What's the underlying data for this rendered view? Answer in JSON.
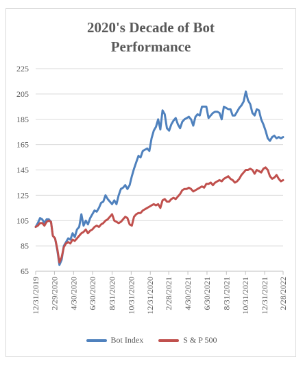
{
  "chart_data": {
    "type": "line",
    "title": "2020's Decade of Bot\nPerformance",
    "xlabel": "",
    "ylabel": "",
    "ylim": [
      65,
      225
    ],
    "yticks": [
      65,
      85,
      105,
      125,
      145,
      165,
      185,
      205,
      225
    ],
    "xlim": [
      "2019-12-31",
      "2022-02-28"
    ],
    "xtick_labels": [
      "12/31/2019",
      "2/29/2020",
      "4/30/2020",
      "6/30/2020",
      "8/31/2020",
      "10/31/2020",
      "12/31/2020",
      "2/28/2021",
      "4/30/2021",
      "6/30/2021",
      "8/31/2021",
      "10/31/2021",
      "12/31/2021",
      "2/28/2022"
    ],
    "grid": "horizontal",
    "legend_position": "bottom",
    "series": [
      {
        "name": "Bot Index",
        "color": "#4f81bd",
        "points": [
          [
            "2019-12-31",
            100
          ],
          [
            "2020-01-07",
            103
          ],
          [
            "2020-01-14",
            107
          ],
          [
            "2020-01-21",
            106
          ],
          [
            "2020-01-28",
            103
          ],
          [
            "2020-02-04",
            106
          ],
          [
            "2020-02-11",
            106
          ],
          [
            "2020-02-18",
            104
          ],
          [
            "2020-02-24",
            93
          ],
          [
            "2020-03-02",
            91
          ],
          [
            "2020-03-09",
            82
          ],
          [
            "2020-03-16",
            70
          ],
          [
            "2020-03-23",
            74
          ],
          [
            "2020-03-30",
            85
          ],
          [
            "2020-04-06",
            88
          ],
          [
            "2020-04-13",
            91
          ],
          [
            "2020-04-20",
            90
          ],
          [
            "2020-04-27",
            95
          ],
          [
            "2020-05-04",
            92
          ],
          [
            "2020-05-11",
            98
          ],
          [
            "2020-05-18",
            100
          ],
          [
            "2020-05-25",
            110
          ],
          [
            "2020-06-01",
            101
          ],
          [
            "2020-06-08",
            105
          ],
          [
            "2020-06-15",
            102
          ],
          [
            "2020-06-22",
            107
          ],
          [
            "2020-06-29",
            110
          ],
          [
            "2020-07-06",
            113
          ],
          [
            "2020-07-13",
            112
          ],
          [
            "2020-07-20",
            115
          ],
          [
            "2020-07-27",
            119
          ],
          [
            "2020-08-03",
            120
          ],
          [
            "2020-08-10",
            125
          ],
          [
            "2020-08-17",
            122
          ],
          [
            "2020-08-24",
            120
          ],
          [
            "2020-08-31",
            118
          ],
          [
            "2020-09-07",
            121
          ],
          [
            "2020-09-14",
            118
          ],
          [
            "2020-09-21",
            125
          ],
          [
            "2020-09-28",
            130
          ],
          [
            "2020-10-05",
            131
          ],
          [
            "2020-10-12",
            133
          ],
          [
            "2020-10-19",
            130
          ],
          [
            "2020-10-26",
            133
          ],
          [
            "2020-11-02",
            140
          ],
          [
            "2020-11-09",
            146
          ],
          [
            "2020-11-16",
            151
          ],
          [
            "2020-11-23",
            156
          ],
          [
            "2020-11-30",
            155
          ],
          [
            "2020-12-07",
            160
          ],
          [
            "2020-12-14",
            161
          ],
          [
            "2020-12-21",
            162
          ],
          [
            "2020-12-28",
            160
          ],
          [
            "2021-01-04",
            170
          ],
          [
            "2021-01-11",
            176
          ],
          [
            "2021-01-18",
            179
          ],
          [
            "2021-01-25",
            185
          ],
          [
            "2021-02-01",
            177
          ],
          [
            "2021-02-08",
            192
          ],
          [
            "2021-02-15",
            189
          ],
          [
            "2021-02-22",
            178
          ],
          [
            "2021-03-01",
            176
          ],
          [
            "2021-03-08",
            181
          ],
          [
            "2021-03-15",
            184
          ],
          [
            "2021-03-22",
            186
          ],
          [
            "2021-03-29",
            181
          ],
          [
            "2021-04-05",
            178
          ],
          [
            "2021-04-12",
            183
          ],
          [
            "2021-04-19",
            185
          ],
          [
            "2021-04-26",
            186
          ],
          [
            "2021-05-03",
            187
          ],
          [
            "2021-05-10",
            185
          ],
          [
            "2021-05-17",
            180
          ],
          [
            "2021-05-24",
            187
          ],
          [
            "2021-05-31",
            189
          ],
          [
            "2021-06-07",
            188
          ],
          [
            "2021-06-14",
            195
          ],
          [
            "2021-06-21",
            195
          ],
          [
            "2021-06-28",
            195
          ],
          [
            "2021-07-05",
            186
          ],
          [
            "2021-07-12",
            188
          ],
          [
            "2021-07-19",
            190
          ],
          [
            "2021-07-26",
            191
          ],
          [
            "2021-08-02",
            191
          ],
          [
            "2021-08-09",
            190
          ],
          [
            "2021-08-16",
            185
          ],
          [
            "2021-08-23",
            195
          ],
          [
            "2021-08-30",
            194
          ],
          [
            "2021-09-06",
            193
          ],
          [
            "2021-09-13",
            193
          ],
          [
            "2021-09-20",
            188
          ],
          [
            "2021-09-27",
            188
          ],
          [
            "2021-10-04",
            191
          ],
          [
            "2021-10-11",
            194
          ],
          [
            "2021-10-18",
            196
          ],
          [
            "2021-10-25",
            199
          ],
          [
            "2021-11-01",
            207
          ],
          [
            "2021-11-08",
            200
          ],
          [
            "2021-11-15",
            197
          ],
          [
            "2021-11-22",
            190
          ],
          [
            "2021-11-29",
            188
          ],
          [
            "2021-12-06",
            193
          ],
          [
            "2021-12-13",
            192
          ],
          [
            "2021-12-20",
            185
          ],
          [
            "2021-12-27",
            181
          ],
          [
            "2022-01-03",
            176
          ],
          [
            "2022-01-10",
            170
          ],
          [
            "2022-01-17",
            168
          ],
          [
            "2022-01-24",
            171
          ],
          [
            "2022-01-31",
            172
          ],
          [
            "2022-02-07",
            170
          ],
          [
            "2022-02-14",
            171
          ],
          [
            "2022-02-21",
            170
          ],
          [
            "2022-02-28",
            171
          ]
        ]
      },
      {
        "name": "S & P 500",
        "color": "#c0504d",
        "points": [
          [
            "2019-12-31",
            100
          ],
          [
            "2020-01-07",
            101
          ],
          [
            "2020-01-14",
            103
          ],
          [
            "2020-01-21",
            103
          ],
          [
            "2020-01-28",
            101
          ],
          [
            "2020-02-04",
            104
          ],
          [
            "2020-02-11",
            105
          ],
          [
            "2020-02-18",
            104
          ],
          [
            "2020-02-24",
            93
          ],
          [
            "2020-03-02",
            91
          ],
          [
            "2020-03-09",
            83
          ],
          [
            "2020-03-16",
            72
          ],
          [
            "2020-03-23",
            76
          ],
          [
            "2020-03-30",
            84
          ],
          [
            "2020-04-06",
            87
          ],
          [
            "2020-04-13",
            88
          ],
          [
            "2020-04-20",
            87
          ],
          [
            "2020-04-27",
            90
          ],
          [
            "2020-05-04",
            89
          ],
          [
            "2020-05-11",
            91
          ],
          [
            "2020-05-18",
            93
          ],
          [
            "2020-05-25",
            95
          ],
          [
            "2020-06-01",
            96
          ],
          [
            "2020-06-08",
            98
          ],
          [
            "2020-06-15",
            95
          ],
          [
            "2020-06-22",
            97
          ],
          [
            "2020-06-29",
            98
          ],
          [
            "2020-07-06",
            100
          ],
          [
            "2020-07-13",
            101
          ],
          [
            "2020-07-20",
            100
          ],
          [
            "2020-07-27",
            102
          ],
          [
            "2020-08-03",
            103
          ],
          [
            "2020-08-10",
            105
          ],
          [
            "2020-08-17",
            106
          ],
          [
            "2020-08-24",
            108
          ],
          [
            "2020-08-31",
            110
          ],
          [
            "2020-09-07",
            105
          ],
          [
            "2020-09-14",
            104
          ],
          [
            "2020-09-21",
            103
          ],
          [
            "2020-09-28",
            104
          ],
          [
            "2020-10-05",
            106
          ],
          [
            "2020-10-12",
            108
          ],
          [
            "2020-10-19",
            107
          ],
          [
            "2020-10-26",
            102
          ],
          [
            "2020-11-02",
            101
          ],
          [
            "2020-11-09",
            108
          ],
          [
            "2020-11-16",
            110
          ],
          [
            "2020-11-23",
            111
          ],
          [
            "2020-11-30",
            111
          ],
          [
            "2020-12-07",
            113
          ],
          [
            "2020-12-14",
            114
          ],
          [
            "2020-12-21",
            115
          ],
          [
            "2020-12-28",
            116
          ],
          [
            "2021-01-04",
            117
          ],
          [
            "2021-01-11",
            118
          ],
          [
            "2021-01-18",
            117
          ],
          [
            "2021-01-25",
            118
          ],
          [
            "2021-02-01",
            115
          ],
          [
            "2021-02-08",
            121
          ],
          [
            "2021-02-15",
            122
          ],
          [
            "2021-02-22",
            120
          ],
          [
            "2021-03-01",
            120
          ],
          [
            "2021-03-08",
            122
          ],
          [
            "2021-03-15",
            123
          ],
          [
            "2021-03-22",
            122
          ],
          [
            "2021-03-29",
            124
          ],
          [
            "2021-04-05",
            126
          ],
          [
            "2021-04-12",
            129
          ],
          [
            "2021-04-19",
            130
          ],
          [
            "2021-04-26",
            130
          ],
          [
            "2021-05-03",
            131
          ],
          [
            "2021-05-10",
            130
          ],
          [
            "2021-05-17",
            128
          ],
          [
            "2021-05-24",
            129
          ],
          [
            "2021-05-31",
            130
          ],
          [
            "2021-06-07",
            131
          ],
          [
            "2021-06-14",
            132
          ],
          [
            "2021-06-21",
            131
          ],
          [
            "2021-06-28",
            134
          ],
          [
            "2021-07-05",
            134
          ],
          [
            "2021-07-12",
            135
          ],
          [
            "2021-07-19",
            133
          ],
          [
            "2021-07-26",
            135
          ],
          [
            "2021-08-02",
            136
          ],
          [
            "2021-08-09",
            137
          ],
          [
            "2021-08-16",
            136
          ],
          [
            "2021-08-23",
            138
          ],
          [
            "2021-08-30",
            139
          ],
          [
            "2021-09-06",
            140
          ],
          [
            "2021-09-13",
            138
          ],
          [
            "2021-09-20",
            137
          ],
          [
            "2021-09-27",
            135
          ],
          [
            "2021-10-04",
            136
          ],
          [
            "2021-10-11",
            138
          ],
          [
            "2021-10-18",
            141
          ],
          [
            "2021-10-25",
            143
          ],
          [
            "2021-11-01",
            145
          ],
          [
            "2021-11-08",
            145
          ],
          [
            "2021-11-15",
            146
          ],
          [
            "2021-11-22",
            145
          ],
          [
            "2021-11-29",
            142
          ],
          [
            "2021-12-06",
            145
          ],
          [
            "2021-12-13",
            144
          ],
          [
            "2021-12-20",
            143
          ],
          [
            "2021-12-27",
            146
          ],
          [
            "2022-01-03",
            147
          ],
          [
            "2022-01-10",
            145
          ],
          [
            "2022-01-17",
            140
          ],
          [
            "2022-01-24",
            138
          ],
          [
            "2022-01-31",
            139
          ],
          [
            "2022-02-07",
            141
          ],
          [
            "2022-02-14",
            138
          ],
          [
            "2022-02-21",
            136
          ],
          [
            "2022-02-28",
            137
          ]
        ]
      }
    ]
  }
}
